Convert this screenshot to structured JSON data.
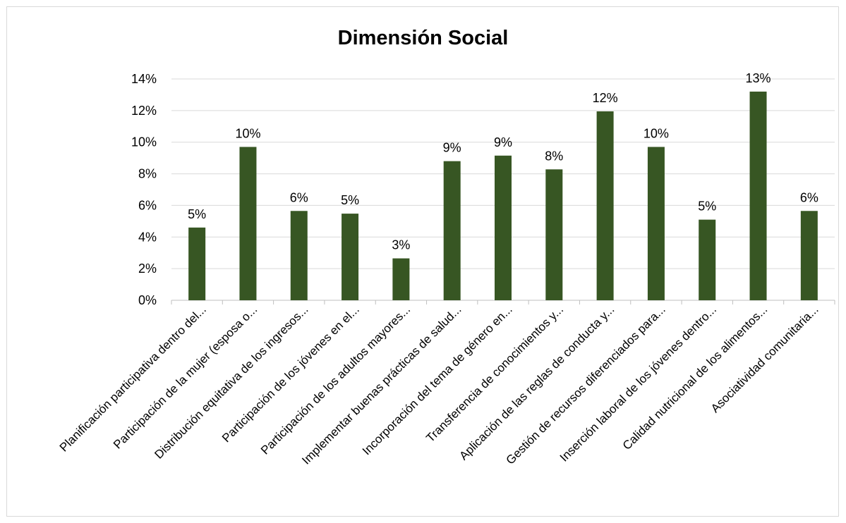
{
  "chart_data": {
    "type": "bar",
    "title": "Dimensión Social",
    "xlabel": "",
    "ylabel": "",
    "ylim": [
      0,
      0.14
    ],
    "yticks": [
      "0%",
      "2%",
      "4%",
      "6%",
      "8%",
      "10%",
      "12%",
      "14%"
    ],
    "grid": true,
    "legend": "none",
    "bar_color": "#375623",
    "categories": [
      "Planificación participativa dentro del...",
      "Participación de la mujer (esposa o...",
      "Distribución equitativa de los ingresos...",
      "Participación de los jóvenes en el...",
      "Participación de los adultos mayores...",
      "Implementar buenas prácticas de salud...",
      "Incorporación del tema de género en...",
      "Transferencia de conocimientos y...",
      "Aplicación de las reglas de conducta y...",
      "Gestión de recursos diferenciados para...",
      "Inserción laboral de los jóvenes dentro...",
      "Calidad nutricional de los alimentos...",
      "Asociatividad comunitaria..."
    ],
    "values": [
      0.046,
      0.097,
      0.0565,
      0.0548,
      0.0265,
      0.088,
      0.0915,
      0.0828,
      0.1195,
      0.097,
      0.051,
      0.132,
      0.0565
    ],
    "data_labels": [
      "5%",
      "10%",
      "6%",
      "5%",
      "3%",
      "9%",
      "9%",
      "8%",
      "12%",
      "10%",
      "5%",
      "13%",
      "6%"
    ]
  }
}
